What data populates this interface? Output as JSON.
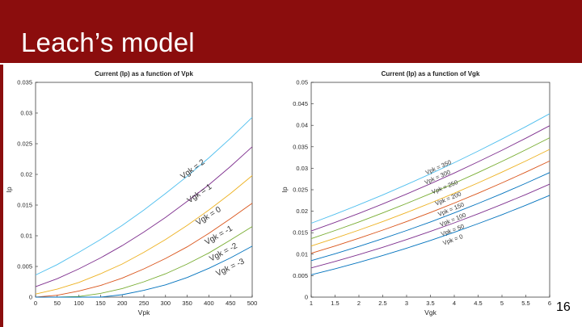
{
  "slide": {
    "title": "Leach’s model",
    "page_number": "16",
    "colors": {
      "header": "#8b0d0d"
    }
  },
  "chart_data": [
    {
      "type": "line",
      "title": "Current (Ip) as a function of Vpk",
      "xlabel": "Vpk",
      "ylabel": "Ip",
      "xlim": [
        0,
        500
      ],
      "ylim": [
        0,
        0.035
      ],
      "xticks": [
        "0",
        "50",
        "100",
        "150",
        "200",
        "250",
        "300",
        "350",
        "400",
        "450",
        "500"
      ],
      "yticks": [
        "0",
        "0.005",
        "0.01",
        "0.015",
        "0.02",
        "0.025",
        "0.03",
        "0.035"
      ],
      "grid": false,
      "x": [
        0,
        50,
        100,
        150,
        200,
        250,
        300,
        350,
        400,
        450,
        500
      ],
      "series": [
        {
          "name": "Vgk = 2",
          "color": "#4dbeee",
          "values": [
            0.0036,
            0.0053,
            0.0073,
            0.0094,
            0.0117,
            0.0142,
            0.0169,
            0.0197,
            0.0227,
            0.0259,
            0.0293
          ]
        },
        {
          "name": "Vgk = 1",
          "color": "#7e2f8e",
          "values": [
            0.0017,
            0.003,
            0.0046,
            0.0064,
            0.0084,
            0.0106,
            0.013,
            0.0156,
            0.0183,
            0.0213,
            0.0245
          ]
        },
        {
          "name": "Vgk = 0",
          "color": "#edb120",
          "values": [
            0.0005,
            0.0013,
            0.0024,
            0.0038,
            0.0054,
            0.0073,
            0.0094,
            0.0117,
            0.0142,
            0.0169,
            0.0198
          ]
        },
        {
          "name": "Vgk = -1",
          "color": "#d95319",
          "values": [
            0.0,
            0.0003,
            0.001,
            0.0019,
            0.0031,
            0.0046,
            0.0063,
            0.0082,
            0.0104,
            0.0128,
            0.0153
          ]
        },
        {
          "name": "Vgk = -2",
          "color": "#77ac30",
          "values": [
            0.0,
            0.0,
            0.0001,
            0.0006,
            0.0014,
            0.0025,
            0.0038,
            0.0054,
            0.0072,
            0.0093,
            0.0115
          ]
        },
        {
          "name": "Vgk = -3",
          "color": "#0072bd",
          "values": [
            0.0,
            0.0,
            0.0,
            0.0,
            0.0004,
            0.0011,
            0.002,
            0.0032,
            0.0047,
            0.0064,
            0.0083
          ]
        }
      ]
    },
    {
      "type": "line",
      "title": "Current (Ip) as a function of Vgk",
      "xlabel": "Vgk",
      "ylabel": "Ip",
      "xlim": [
        1,
        6
      ],
      "ylim": [
        0,
        0.05
      ],
      "xticks": [
        "1",
        "1.5",
        "2",
        "2.5",
        "3",
        "3.5",
        "4",
        "4.5",
        "5",
        "5.5",
        "6"
      ],
      "yticks": [
        "0",
        "0.005",
        "0.01",
        "0.015",
        "0.02",
        "0.025",
        "0.03",
        "0.035",
        "0.04",
        "0.045",
        "0.05"
      ],
      "grid": false,
      "x": [
        1,
        1.5,
        2,
        2.5,
        3,
        3.5,
        4,
        4.5,
        5,
        5.5,
        6
      ],
      "series": [
        {
          "name": "Vpk = 350",
          "color": "#4dbeee",
          "values": [
            0.0172,
            0.0193,
            0.0215,
            0.0238,
            0.0262,
            0.0287,
            0.0313,
            0.034,
            0.0368,
            0.0397,
            0.0427
          ]
        },
        {
          "name": "Vpk = 300",
          "color": "#7e2f8e",
          "values": [
            0.0154,
            0.0174,
            0.0195,
            0.0217,
            0.024,
            0.0264,
            0.0289,
            0.0315,
            0.0342,
            0.037,
            0.0399
          ]
        },
        {
          "name": "Vpk = 250",
          "color": "#77ac30",
          "values": [
            0.0136,
            0.0155,
            0.0175,
            0.0196,
            0.0218,
            0.0241,
            0.0265,
            0.029,
            0.0316,
            0.0343,
            0.0371
          ]
        },
        {
          "name": "Vpk = 200",
          "color": "#edb120",
          "values": [
            0.0119,
            0.0137,
            0.0156,
            0.0176,
            0.0197,
            0.0219,
            0.0242,
            0.0266,
            0.0291,
            0.0317,
            0.0344
          ]
        },
        {
          "name": "Vpk = 150",
          "color": "#d95319",
          "values": [
            0.0102,
            0.0119,
            0.0137,
            0.0156,
            0.0176,
            0.0197,
            0.0219,
            0.0242,
            0.0266,
            0.0291,
            0.0317
          ]
        },
        {
          "name": "Vpk = 100",
          "color": "#0072bd",
          "values": [
            0.0085,
            0.0101,
            0.0118,
            0.0136,
            0.0155,
            0.0175,
            0.0196,
            0.0218,
            0.0241,
            0.0265,
            0.029
          ]
        },
        {
          "name": "Vpk = 50",
          "color": "#7e2f8e",
          "values": [
            0.0068,
            0.0083,
            0.0099,
            0.0116,
            0.0134,
            0.0153,
            0.0173,
            0.0194,
            0.0216,
            0.0239,
            0.0263
          ]
        },
        {
          "name": "Vpk = 0",
          "color": "#0072bd",
          "values": [
            0.0052,
            0.0066,
            0.0081,
            0.0097,
            0.0114,
            0.0132,
            0.0151,
            0.0171,
            0.0192,
            0.0214,
            0.0237
          ]
        }
      ]
    }
  ]
}
